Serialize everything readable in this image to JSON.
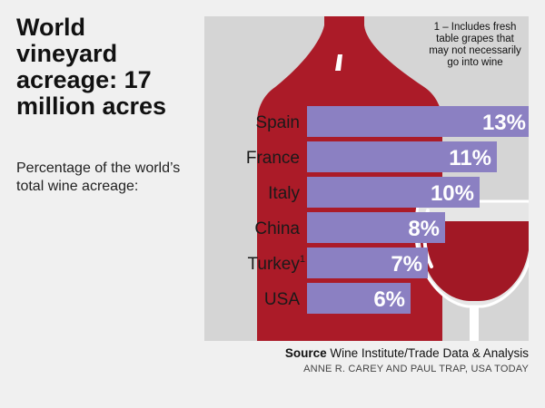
{
  "header": {
    "title": "World vineyard acreage: 17 million acres",
    "subtitle": "Percentage of the world’s total wine acreage:"
  },
  "footnote": "1 – Includes fresh table grapes that may not necessarily go into wine",
  "source": {
    "label": "Source",
    "text": "Wine Institute/Trade Data & Analysis"
  },
  "credit": "ANNE R. CAREY AND PAUL TRAP, USA TODAY",
  "colors": {
    "bar": "#8b80c2",
    "bottle": "#ab1b28",
    "wine": "#a11825",
    "panel": "#d5d5d5"
  },
  "icons": [
    "wine-bottle-illustration",
    "wine-glass-illustration"
  ],
  "chart_data": {
    "type": "bar",
    "orientation": "horizontal",
    "categories": [
      "Spain",
      "France",
      "Italy",
      "China",
      "Turkey",
      "USA"
    ],
    "category_footnotes": [
      "",
      "",
      "",
      "",
      "1",
      ""
    ],
    "values": [
      13,
      11,
      10,
      8,
      7,
      6
    ],
    "value_labels": [
      "13%",
      "11%",
      "10%",
      "8%",
      "7%",
      "6%"
    ],
    "unit": "%",
    "title": "World vineyard acreage: 17 million acres",
    "subtitle": "Percentage of the world’s total wine acreage:",
    "grid": false
  }
}
